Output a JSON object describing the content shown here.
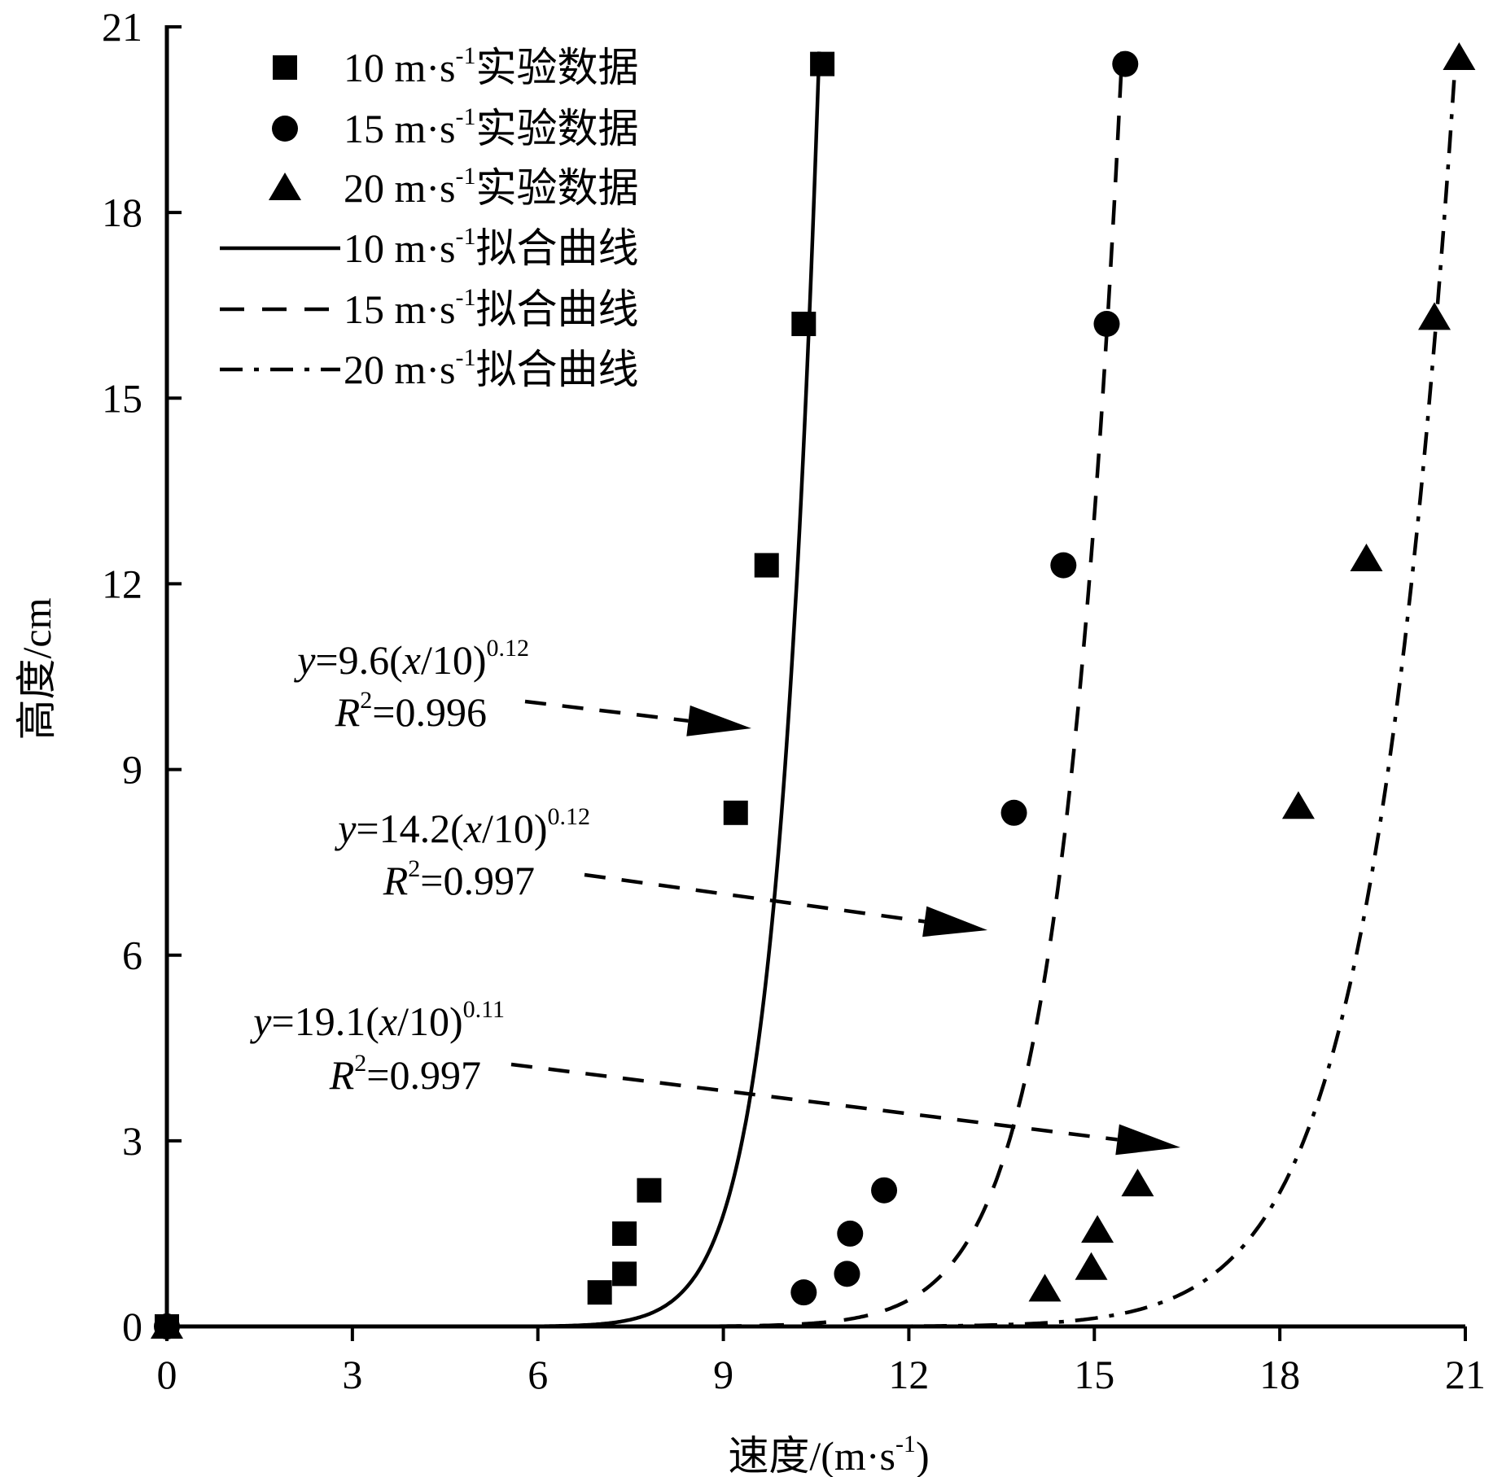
{
  "chart_data": {
    "type": "scatter",
    "xlabel": "速度/(m·s",
    "xlabel_sup": "-1",
    "xlabel_close": ")",
    "ylabel": "高度/cm",
    "xlim": [
      0,
      21
    ],
    "ylim": [
      0,
      21
    ],
    "xticks": [
      0,
      3,
      6,
      9,
      12,
      15,
      18,
      21
    ],
    "yticks": [
      0,
      3,
      6,
      9,
      12,
      15,
      18,
      21
    ],
    "grid": false,
    "legend_position": "top-left",
    "unit_text": " m·s",
    "unit_sup": "-1",
    "series": [
      {
        "name": "实验数据",
        "speed_label": "10",
        "kind": "points",
        "marker": "square",
        "points": [
          [
            0,
            0
          ],
          [
            7.0,
            0.55
          ],
          [
            7.4,
            0.85
          ],
          [
            7.4,
            1.5
          ],
          [
            7.8,
            2.2
          ],
          [
            9.2,
            8.3
          ],
          [
            9.7,
            12.3
          ],
          [
            10.3,
            16.2
          ],
          [
            10.6,
            20.4
          ]
        ]
      },
      {
        "name": "实验数据",
        "speed_label": "15",
        "kind": "points",
        "marker": "circle",
        "points": [
          [
            0,
            0
          ],
          [
            10.3,
            0.55
          ],
          [
            11.0,
            0.85
          ],
          [
            11.05,
            1.5
          ],
          [
            11.6,
            2.2
          ],
          [
            13.7,
            8.3
          ],
          [
            14.5,
            12.3
          ],
          [
            15.2,
            16.2
          ],
          [
            15.5,
            20.4
          ]
        ]
      },
      {
        "name": "实验数据",
        "speed_label": "20",
        "kind": "points",
        "marker": "triangle",
        "points": [
          [
            0,
            0
          ],
          [
            14.2,
            0.6
          ],
          [
            14.95,
            0.95
          ],
          [
            15.05,
            1.55
          ],
          [
            15.7,
            2.3
          ],
          [
            18.3,
            8.4
          ],
          [
            19.4,
            12.4
          ],
          [
            20.5,
            16.3
          ],
          [
            20.9,
            20.5
          ]
        ]
      },
      {
        "name": "拟合曲线",
        "speed_label": "10",
        "kind": "line",
        "dash": "solid",
        "a": 9.6,
        "b": 0.12
      },
      {
        "name": "拟合曲线",
        "speed_label": "15",
        "kind": "line",
        "dash": "dashed",
        "a": 14.2,
        "b": 0.12
      },
      {
        "name": "拟合曲线",
        "speed_label": "20",
        "kind": "line",
        "dash": "dash-dot",
        "a": 19.1,
        "b": 0.11
      }
    ],
    "annotations": [
      {
        "y_var": "y",
        "eq_coef": "=9.6(",
        "x_var": "x",
        "eq_rest": "/10)",
        "exponent": "0.12",
        "r_var": "R",
        "r_sup": "2",
        "r_value": "=0.996"
      },
      {
        "y_var": "y",
        "eq_coef": "=14.2(",
        "x_var": "x",
        "eq_rest": "/10)",
        "exponent": "0.12",
        "r_var": "R",
        "r_sup": "2",
        "r_value": "=0.997"
      },
      {
        "y_var": "y",
        "eq_coef": "=19.1(",
        "x_var": "x",
        "eq_rest": "/10)",
        "exponent": "0.11",
        "r_var": "R",
        "r_sup": "2",
        "r_value": "=0.997"
      }
    ]
  }
}
